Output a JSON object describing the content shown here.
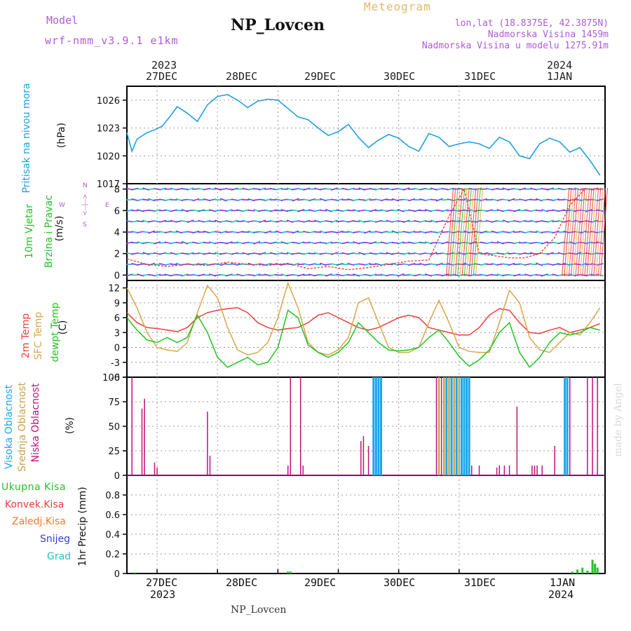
{
  "header": {
    "model_label": "Model",
    "model_name": "wrf-nmm_v3.9.1 e1km",
    "station": "NP_Lovcen",
    "meteogram": "Meteogram",
    "lonlat": "lon,lat (18.8375E, 42.3875N)",
    "elevation": "Nadmorska Visina 1459m",
    "elevation_model": "Nadmorska Visina u modelu 1275.91m",
    "footer_station": "NP_Lovcen",
    "watermark": "made by Angel"
  },
  "axis_top": {
    "year_start": "2023",
    "year_end": "2024",
    "days": [
      "27DEC",
      "28DEC",
      "29DEC",
      "30DEC",
      "31DEC",
      "1JAN"
    ]
  },
  "axis_bottom": {
    "days": [
      "27DEC",
      "28DEC",
      "29DEC",
      "30DEC",
      "31DEC",
      "1JAN"
    ],
    "year_start": "2023",
    "year_end": "2024"
  },
  "panel_labels": {
    "pressure": [
      "Pritisak na nivou mora"
    ],
    "pressure_unit": "(hPa)",
    "wind": [
      "10m Vjetar",
      "Brzina i Pravac"
    ],
    "wind_unit": "(m/s)",
    "compass": [
      "W",
      "<--|-->",
      "E",
      "N",
      "S"
    ],
    "temp_lines": [
      "2m Temp",
      "SFC Temp",
      "dewpt Temp"
    ],
    "temp_unit": "(C)",
    "cloud_lines": [
      "Visoka Oblacnost",
      "Srednja Oblacnost",
      "Niska Oblacnost"
    ],
    "cloud_unit": "(%)",
    "precip_legend": [
      "Ukupna Kisa",
      "Konvek.Kisa",
      "Zaledj.Kisa",
      "Snijeg",
      "Grad"
    ],
    "precip_axis": "1hr Precip (mm)"
  },
  "colors": {
    "pressure": "#1fa0e0",
    "temp2m": "#e8413c",
    "sfc": "#d9a54c",
    "dewpt": "#22c422",
    "cloud_high": "#1aa6f0",
    "cloud_mid": "#c9a24a",
    "cloud_low": "#c0107e",
    "total_rain": "#2bbf2b",
    "conv_rain": "#ee3b3b",
    "frz_rain": "#f2792a",
    "snow": "#3a3adf",
    "hail": "#22c2c2",
    "purple": "#b05ad8",
    "gold": "#e0b86a"
  },
  "chart_data": [
    {
      "type": "line",
      "panel": "pressure",
      "x_unit": "hours from 26DEC 12UTC",
      "ylim": [
        1017,
        1027.5
      ],
      "yticks": [
        "1017",
        "1020",
        "1023",
        "1026"
      ],
      "series": [
        {
          "x": [
            0,
            2,
            4,
            8,
            11,
            14,
            17,
            20,
            24,
            28,
            32,
            36,
            40,
            44,
            48,
            52,
            56,
            60,
            64,
            68,
            72,
            76,
            80,
            84,
            88,
            92,
            96,
            100,
            104,
            108,
            112,
            116,
            120,
            124,
            128,
            132,
            136,
            140,
            144,
            148,
            152,
            156,
            160,
            164,
            168,
            172,
            176,
            180,
            184,
            188
          ],
          "values": [
            1022.5,
            1020.5,
            1021.8,
            1022.5,
            1022.8,
            1023.2,
            1024.2,
            1025.3,
            1024.6,
            1023.7,
            1025.5,
            1026.4,
            1026.6,
            1026.0,
            1025.2,
            1025.9,
            1026.1,
            1026.0,
            1025.1,
            1024.2,
            1023.9,
            1023.0,
            1022.2,
            1022.6,
            1023.4,
            1022.0,
            1020.9,
            1021.7,
            1022.3,
            1021.9,
            1021.0,
            1020.5,
            1022.4,
            1022.0,
            1021.0,
            1021.3,
            1021.5,
            1021.3,
            1020.8,
            1022.0,
            1021.5,
            1020.0,
            1019.7,
            1021.3,
            1021.9,
            1021.5,
            1020.4,
            1020.9,
            1019.5,
            1017.9
          ]
        }
      ]
    },
    {
      "type": "scatter",
      "panel": "wind",
      "ylim": [
        -0.5,
        8.5
      ],
      "yticks": [
        "0",
        "2",
        "4",
        "6",
        "8"
      ],
      "series": [
        {
          "x": [
            0,
            8,
            16,
            24,
            32,
            40,
            48,
            56,
            64,
            72,
            80,
            88,
            96,
            104,
            112,
            120,
            128,
            134,
            140,
            146,
            152,
            158,
            164,
            170,
            176,
            182,
            188
          ],
          "values": [
            1.5,
            1.0,
            0.8,
            1.0,
            0.9,
            1.2,
            1.0,
            0.9,
            1.1,
            0.6,
            0.8,
            0.5,
            0.7,
            1.0,
            1.3,
            1.4,
            5.5,
            8.0,
            2.0,
            1.8,
            1.6,
            1.6,
            2.0,
            3.5,
            6.5,
            8.0,
            8.0
          ]
        }
      ]
    },
    {
      "type": "line",
      "panel": "temperature",
      "ylim": [
        -6,
        13.5
      ],
      "yticks": [
        "-6",
        "-3",
        "0",
        "3",
        "6",
        "9",
        "12"
      ],
      "series": [
        {
          "x": [
            0,
            4,
            8,
            12,
            16,
            20,
            24,
            28,
            32,
            36,
            40,
            44,
            48,
            52,
            56,
            60,
            64,
            68,
            72,
            76,
            80,
            84,
            88,
            92,
            96,
            100,
            104,
            108,
            112,
            116,
            120,
            124,
            128,
            132,
            136,
            140,
            144,
            148,
            152,
            156,
            160,
            164,
            168,
            172,
            176,
            180,
            184,
            188
          ],
          "values": [
            7,
            5,
            4,
            3.8,
            3.5,
            3.2,
            4,
            6,
            7,
            7.5,
            7.8,
            8,
            7,
            5,
            4,
            3.5,
            3.8,
            4,
            5,
            6.5,
            7,
            6,
            5,
            4,
            3.5,
            4,
            5,
            6,
            6.5,
            6,
            4,
            3.5,
            3,
            2.5,
            2.5,
            4,
            6.5,
            7.8,
            7.5,
            5,
            3,
            2.8,
            3.5,
            4,
            3,
            3.5,
            4,
            4.8
          ]
        },
        {
          "x": [
            0,
            4,
            8,
            12,
            16,
            20,
            24,
            28,
            32,
            36,
            40,
            44,
            48,
            52,
            56,
            60,
            64,
            68,
            72,
            76,
            80,
            84,
            88,
            92,
            96,
            100,
            104,
            108,
            112,
            116,
            120,
            124,
            128,
            132,
            136,
            140,
            144,
            148,
            152,
            156,
            160,
            164,
            168,
            172,
            176,
            180,
            184,
            188
          ],
          "values": [
            12,
            8,
            3,
            0,
            -0.5,
            -0.8,
            1,
            7,
            12.5,
            10,
            4,
            -0.5,
            -1.5,
            -1,
            1,
            6,
            13,
            8,
            1,
            -1,
            -1.5,
            -0.5,
            2,
            9,
            10,
            5,
            0,
            -1,
            -1,
            0,
            5,
            9.5,
            5,
            0,
            -0.8,
            -1,
            -1,
            5,
            11.5,
            9,
            2,
            -0.5,
            -1,
            1,
            3,
            2.5,
            5,
            8
          ]
        },
        {
          "x": [
            0,
            4,
            8,
            12,
            16,
            20,
            24,
            28,
            32,
            36,
            40,
            44,
            48,
            52,
            56,
            60,
            64,
            68,
            72,
            76,
            80,
            84,
            88,
            92,
            96,
            100,
            104,
            108,
            112,
            116,
            120,
            124,
            128,
            132,
            136,
            140,
            144,
            148,
            152,
            156,
            160,
            164,
            168,
            172,
            176,
            180,
            184,
            188
          ],
          "values": [
            6,
            3.5,
            1.5,
            1,
            2,
            1,
            2,
            6.5,
            3,
            -2,
            -4,
            -3,
            -2,
            -3.5,
            -3,
            0,
            7.5,
            6,
            0.5,
            -1,
            -2,
            -1,
            1,
            5,
            3,
            1,
            -0.5,
            -0.7,
            -0.5,
            0,
            2,
            3.5,
            1,
            -1.8,
            -3.8,
            -2.5,
            -0.5,
            3,
            5,
            -1,
            -4,
            -2,
            1,
            3,
            2.5,
            3,
            4,
            3.5
          ]
        }
      ]
    },
    {
      "type": "bar",
      "panel": "cloud",
      "ylim": [
        0,
        100
      ],
      "yticks": [
        "0",
        "25",
        "50",
        "75",
        "100"
      ],
      "series": [
        {
          "name": "Niska Oblacnost",
          "x": [
            2,
            6,
            7,
            11,
            12,
            32,
            33,
            64,
            65,
            69,
            70,
            93,
            94,
            96,
            123,
            124,
            125,
            126,
            129,
            130,
            134,
            137,
            140,
            147,
            148,
            150,
            152,
            155,
            161,
            162,
            163,
            165,
            170,
            176,
            183,
            185,
            187
          ],
          "values": [
            100,
            68,
            78,
            13,
            8,
            65,
            20,
            10,
            100,
            100,
            10,
            35,
            40,
            30,
            100,
            100,
            100,
            100,
            100,
            100,
            100,
            10,
            10,
            8,
            10,
            10,
            10,
            70,
            10,
            10,
            10,
            10,
            30,
            100,
            100,
            100,
            100
          ]
        },
        {
          "name": "Srednja Oblacnost",
          "x": [
            124,
            126,
            128,
            130,
            132
          ],
          "values": [
            100,
            100,
            100,
            100,
            100
          ]
        },
        {
          "name": "Visoka Oblacnost",
          "x": [
            98,
            99,
            100,
            101,
            127,
            129,
            131,
            133,
            134,
            135,
            136,
            174,
            175
          ],
          "values": [
            100,
            100,
            100,
            100,
            100,
            100,
            100,
            100,
            100,
            100,
            100,
            100,
            100
          ]
        }
      ]
    },
    {
      "type": "bar",
      "panel": "precip",
      "ylim": [
        0,
        1.0
      ],
      "yticks": [
        "0",
        "0.2",
        "0.4",
        "0.6",
        "0.8"
      ],
      "series": [
        {
          "name": "Ukupna Kisa",
          "x": [
            3,
            64,
            65,
            177,
            179,
            181,
            183,
            185,
            186,
            187
          ],
          "values": [
            0.01,
            0.02,
            0.02,
            0.02,
            0.04,
            0.06,
            0.03,
            0.14,
            0.1,
            0.06
          ]
        }
      ]
    }
  ]
}
